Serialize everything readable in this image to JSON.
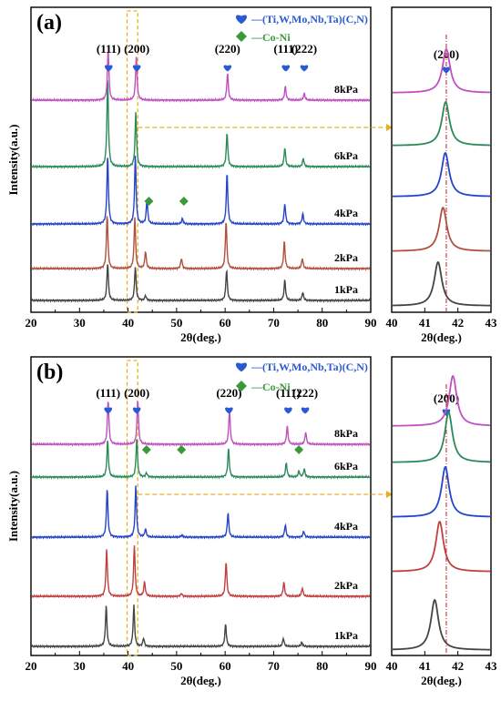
{
  "chart_data": [
    {
      "type": "line",
      "panel_label": "(a)",
      "xlabel": "2θ(deg.)",
      "ylabel": "Intensity(a.u.)",
      "xlim": [
        20,
        90
      ],
      "xticks": [
        20,
        30,
        40,
        50,
        60,
        70,
        80,
        90
      ],
      "legend": [
        {
          "marker": "heart",
          "color": "#2a5ad2",
          "label": "—(Ti,W,Mo,Nb,Ta)(C,N)"
        },
        {
          "marker": "diamond",
          "color": "#3a9a3a",
          "label": "—Co-Ni"
        }
      ],
      "peak_labels": [
        {
          "text": "(111)",
          "x": 36.0
        },
        {
          "text": "(200)",
          "x": 41.8
        },
        {
          "text": "(220)",
          "x": 60.5
        },
        {
          "text": "(111)",
          "x": 72.5
        },
        {
          "text": "(222)",
          "x": 76.3
        }
      ],
      "coni_markers": [
        {
          "series": "4kPa",
          "x": 44.3
        },
        {
          "series": "4kPa",
          "x": 51.5
        }
      ],
      "series": [
        {
          "name": "1kPa",
          "color": "#444444",
          "peaks": [
            [
              35.8,
              0.55
            ],
            [
              41.5,
              0.5
            ],
            [
              43.6,
              0.07
            ],
            [
              60.3,
              0.45
            ],
            [
              72.3,
              0.3
            ],
            [
              76.0,
              0.12
            ]
          ]
        },
        {
          "name": "2kPa",
          "color": "#b05040",
          "peaks": [
            [
              35.7,
              0.8
            ],
            [
              41.4,
              0.75
            ],
            [
              43.6,
              0.25
            ],
            [
              51.0,
              0.15
            ],
            [
              60.2,
              0.7
            ],
            [
              72.2,
              0.4
            ],
            [
              75.9,
              0.15
            ]
          ]
        },
        {
          "name": "4kPa",
          "color": "#2444cc",
          "peaks": [
            [
              35.8,
              1.0
            ],
            [
              41.5,
              1.0
            ],
            [
              43.9,
              0.35
            ],
            [
              51.2,
              0.08
            ],
            [
              60.4,
              0.75
            ],
            [
              72.3,
              0.3
            ],
            [
              76.0,
              0.15
            ]
          ]
        },
        {
          "name": "6kPa",
          "color": "#2a8a5a",
          "peaks": [
            [
              35.8,
              1.3
            ],
            [
              41.6,
              0.8
            ],
            [
              60.4,
              0.5
            ],
            [
              72.3,
              0.28
            ],
            [
              76.1,
              0.12
            ]
          ]
        },
        {
          "name": "8kPa",
          "color": "#c050c0",
          "peaks": [
            [
              35.9,
              0.75
            ],
            [
              41.7,
              0.65
            ],
            [
              60.5,
              0.4
            ],
            [
              72.4,
              0.2
            ],
            [
              76.3,
              0.1
            ]
          ]
        }
      ],
      "inset": {
        "xlim": [
          40,
          43
        ],
        "xticks": [
          40,
          41,
          42,
          43
        ],
        "xlabel": "2θ(deg.)",
        "peak_label": "(200)",
        "reference_x": 41.65,
        "peaks": [
          {
            "series": "1kPa",
            "x": 41.4
          },
          {
            "series": "2kPa",
            "x": 41.55
          },
          {
            "series": "4kPa",
            "x": 41.62
          },
          {
            "series": "6kPa",
            "x": 41.63
          },
          {
            "series": "8kPa",
            "x": 41.65
          }
        ]
      }
    },
    {
      "type": "line",
      "panel_label": "(b)",
      "xlabel": "2θ(deg.)",
      "ylabel": "Intensity(a.u.)",
      "xlim": [
        20,
        90
      ],
      "xticks": [
        20,
        30,
        40,
        50,
        60,
        70,
        80,
        90
      ],
      "legend": [
        {
          "marker": "heart",
          "color": "#2a5ad2",
          "label": "—(Ti,W,Mo,Nb,Ta)(C,N)"
        },
        {
          "marker": "diamond",
          "color": "#3a9a3a",
          "label": "—Co-Ni"
        }
      ],
      "peak_labels": [
        {
          "text": "(111)",
          "x": 35.9
        },
        {
          "text": "(200)",
          "x": 41.8
        },
        {
          "text": "(220)",
          "x": 60.8
        },
        {
          "text": "(111)",
          "x": 73.0
        },
        {
          "text": "(222)",
          "x": 76.5
        }
      ],
      "coni_markers": [
        {
          "series": "6kPa",
          "x": 43.8
        },
        {
          "series": "6kPa",
          "x": 51.0
        },
        {
          "series": "6kPa",
          "x": 75.2
        }
      ],
      "series": [
        {
          "name": "1kPa",
          "color": "#444444",
          "peaks": [
            [
              35.5,
              1.0
            ],
            [
              41.2,
              1.0
            ],
            [
              43.2,
              0.2
            ],
            [
              60.1,
              0.55
            ],
            [
              72.0,
              0.2
            ],
            [
              75.8,
              0.1
            ]
          ]
        },
        {
          "name": "2kPa",
          "color": "#c04040",
          "peaks": [
            [
              35.6,
              1.15
            ],
            [
              41.3,
              1.25
            ],
            [
              43.4,
              0.35
            ],
            [
              51.0,
              0.07
            ],
            [
              60.2,
              0.85
            ],
            [
              72.1,
              0.35
            ],
            [
              75.9,
              0.2
            ]
          ]
        },
        {
          "name": "4kPa",
          "color": "#2444cc",
          "peaks": [
            [
              35.7,
              1.2
            ],
            [
              41.6,
              1.25
            ],
            [
              43.6,
              0.2
            ],
            [
              51.1,
              0.05
            ],
            [
              60.6,
              0.6
            ],
            [
              72.4,
              0.3
            ],
            [
              76.2,
              0.15
            ]
          ]
        },
        {
          "name": "6kPa",
          "color": "#2a8a5a",
          "peaks": [
            [
              35.8,
              0.9
            ],
            [
              41.8,
              0.95
            ],
            [
              43.8,
              0.1
            ],
            [
              60.7,
              0.7
            ],
            [
              72.6,
              0.35
            ],
            [
              75.2,
              0.15
            ],
            [
              76.3,
              0.2
            ]
          ]
        },
        {
          "name": "8kPa",
          "color": "#c050c0",
          "peaks": [
            [
              35.9,
              1.1
            ],
            [
              42.0,
              1.1
            ],
            [
              60.9,
              0.85
            ],
            [
              72.8,
              0.45
            ],
            [
              76.6,
              0.3
            ]
          ]
        }
      ],
      "inset": {
        "xlim": [
          40,
          43
        ],
        "xticks": [
          40,
          41,
          42,
          43
        ],
        "xlabel": "2θ(deg.)",
        "peak_label": "(200)",
        "reference_x": 41.65,
        "peaks": [
          {
            "series": "1kPa",
            "x": 41.3
          },
          {
            "series": "2kPa",
            "x": 41.45
          },
          {
            "series": "4kPa",
            "x": 41.62
          },
          {
            "series": "6kPa",
            "x": 41.72
          },
          {
            "series": "8kPa",
            "x": 41.85
          }
        ]
      }
    }
  ]
}
